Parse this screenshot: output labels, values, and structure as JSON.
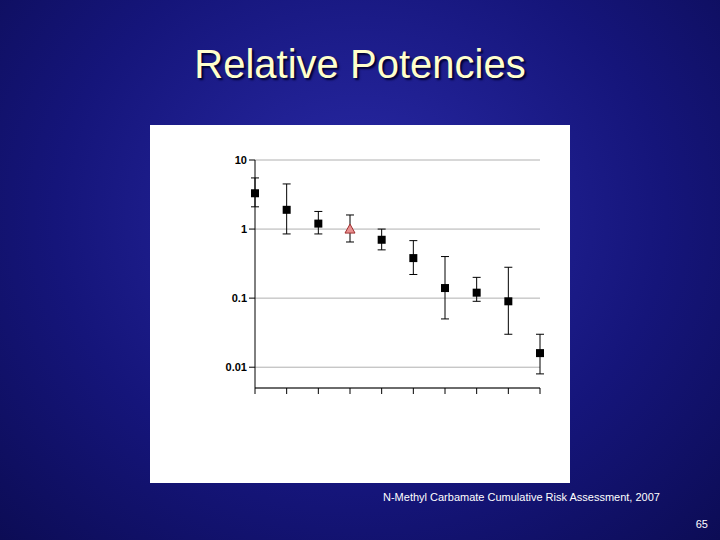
{
  "chart_data": {
    "type": "scatter",
    "title": "Relative Potencies",
    "categories": [
      null,
      null,
      null,
      null,
      null,
      null,
      null,
      null,
      null,
      null
    ],
    "series": [
      {
        "color": "#000000",
        "marker": "square",
        "values": [
          3.3,
          1.9,
          1.2,
          null,
          0.7,
          0.38,
          0.14,
          0.12,
          0.09,
          0.016
        ],
        "lower": [
          2.1,
          0.85,
          0.85,
          null,
          0.5,
          0.22,
          0.05,
          0.09,
          0.03,
          0.008
        ],
        "upper": [
          5.5,
          4.5,
          1.8,
          null,
          1.0,
          0.68,
          0.4,
          0.2,
          0.28,
          0.03
        ]
      },
      {
        "color": "#e89090",
        "marker": "triangle",
        "values": [
          null,
          null,
          null,
          1.0,
          null,
          null,
          null,
          null,
          null,
          null
        ],
        "lower": [
          null,
          null,
          null,
          0.65,
          null,
          null,
          null,
          null,
          null,
          null
        ],
        "upper": [
          null,
          null,
          null,
          1.6,
          null,
          null,
          null,
          null,
          null,
          null
        ]
      }
    ],
    "log": "y",
    "ylim": [
      0.005,
      10
    ],
    "yticks": [
      0.01,
      0.1,
      1,
      10
    ],
    "grid": true
  },
  "slide": {
    "caption": "N-Methyl Carbamate Cumulative Risk Assessment, 2007",
    "page_number": "65"
  }
}
